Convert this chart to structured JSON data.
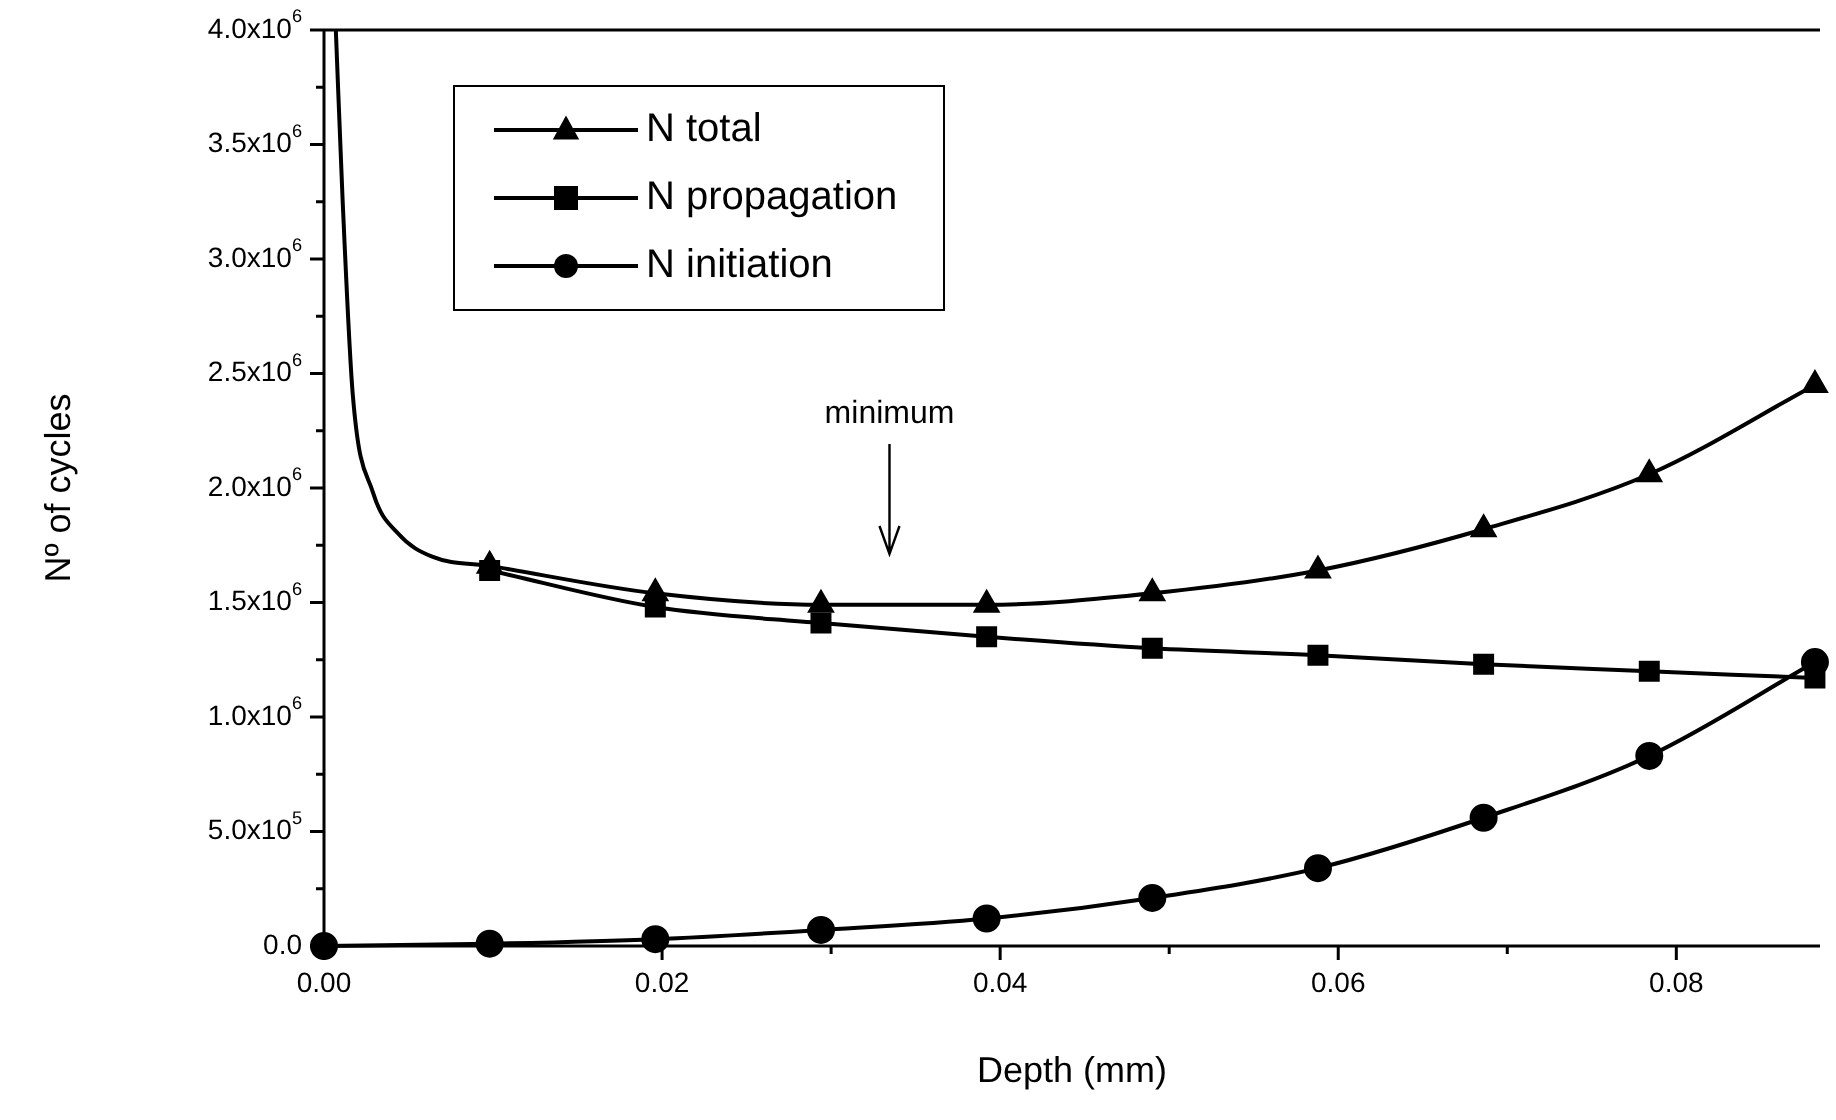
{
  "chart_data": {
    "type": "line",
    "xlabel": "Depth (mm)",
    "ylabel": "Nº of cycles",
    "xlim": [
      0,
      0.0885
    ],
    "ylim": [
      0,
      4000000
    ],
    "xticks": [
      {
        "value": 0,
        "label": "0.00"
      },
      {
        "value": 0.01,
        "label": null
      },
      {
        "value": 0.02,
        "label": "0.02"
      },
      {
        "value": 0.03,
        "label": null
      },
      {
        "value": 0.04,
        "label": "0.04"
      },
      {
        "value": 0.05,
        "label": null
      },
      {
        "value": 0.06,
        "label": "0.06"
      },
      {
        "value": 0.07,
        "label": null
      },
      {
        "value": 0.08,
        "label": "0.08"
      }
    ],
    "yticks": [
      {
        "value": 0,
        "label": "0.0"
      },
      {
        "value": 250000,
        "label": null
      },
      {
        "value": 500000,
        "label": "5.0x10$^{5}$"
      },
      {
        "value": 750000,
        "label": null
      },
      {
        "value": 1000000,
        "label": "1.0x10$^{6}$"
      },
      {
        "value": 1250000,
        "label": null
      },
      {
        "value": 1500000,
        "label": "1.5x10$^{6}$"
      },
      {
        "value": 1750000,
        "label": null
      },
      {
        "value": 2000000,
        "label": "2.0x10$^{6}$"
      },
      {
        "value": 2250000,
        "label": null
      },
      {
        "value": 2500000,
        "label": "2.5x10$^{6}$"
      },
      {
        "value": 2750000,
        "label": null
      },
      {
        "value": 3000000,
        "label": "3.0x10$^{6}$"
      },
      {
        "value": 3250000,
        "label": null
      },
      {
        "value": 3500000,
        "label": "3.5x10$^{6}$"
      },
      {
        "value": 3750000,
        "label": null
      },
      {
        "value": 4000000,
        "label": "4.0x10$^{6}$"
      }
    ],
    "grid": false,
    "legend": "top left",
    "line_style": "solid",
    "x": [
      0.0098,
      0.0196,
      0.0294,
      0.0392,
      0.049,
      0.0588,
      0.0686,
      0.0784,
      0.0882
    ],
    "series": [
      {
        "name": "N total",
        "color": "#000000",
        "marker": "triangle",
        "values": [
          1660000,
          1540000,
          1490000,
          1490000,
          1540000,
          1640000,
          1820000,
          2060000,
          2450000
        ]
      },
      {
        "name": "N propagation",
        "color": "#000000",
        "marker": "square",
        "values": [
          1640000,
          1480000,
          1410000,
          1350000,
          1300000,
          1270000,
          1230000,
          1200000,
          1170000
        ]
      },
      {
        "name": "N initiation",
        "color": "#000000",
        "marker": "circle",
        "x": [
          0,
          0.0098,
          0.0196,
          0.0294,
          0.0392,
          0.049,
          0.0588,
          0.0686,
          0.0784,
          0.0882
        ],
        "values": [
          0,
          10000,
          30000,
          70000,
          120000,
          210000,
          340000,
          560000,
          830000,
          1240000
        ]
      },
      {
        "color": "#000000",
        "marker": "none",
        "x": [
          0.0007,
          0.0011,
          0.0017,
          0.0029,
          0.0044,
          0.0064,
          0.0098
        ],
        "values": [
          4000000,
          3260000,
          2410000,
          1980000,
          1800000,
          1700000,
          1660000
        ]
      }
    ],
    "annotations": [
      "minimum"
    ]
  }
}
